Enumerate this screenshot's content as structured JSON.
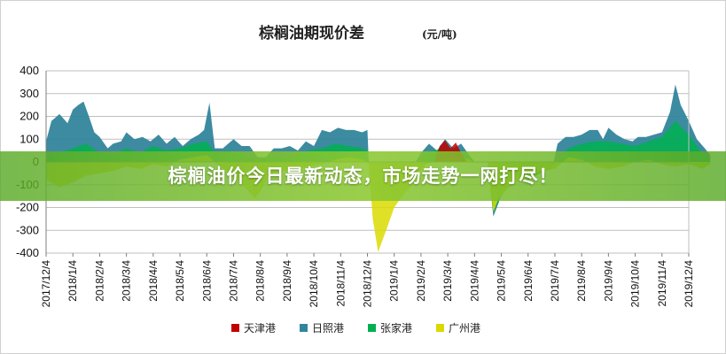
{
  "chart_data": {
    "type": "area",
    "title": "棕榈油期现价差",
    "unit": "(元/吨)",
    "ylim": [
      -400,
      400
    ],
    "yticks": [
      400,
      300,
      200,
      100,
      0,
      -100,
      -200,
      -300,
      -400
    ],
    "grid": true,
    "legend_position": "bottom",
    "x_labels": [
      "2017/12/4",
      "2018/1/4",
      "2018/2/4",
      "2018/3/4",
      "2018/4/4",
      "2018/5/4",
      "2018/6/4",
      "2018/7/4",
      "2018/8/4",
      "2018/9/4",
      "2018/10/4",
      "2018/11/4",
      "2018/12/4",
      "2019/1/4",
      "2019/2/4",
      "2019/3/4",
      "2019/4/4",
      "2019/5/4",
      "2019/6/4",
      "2019/7/4",
      "2019/8/4",
      "2019/9/4",
      "2019/10/4",
      "2019/11/4",
      "2019/12/4"
    ],
    "series": [
      {
        "name": "天津港",
        "color": "#c00000",
        "points": [
          [
            14.5,
            0
          ],
          [
            14.7,
            70
          ],
          [
            14.9,
            95
          ],
          [
            15.1,
            60
          ],
          [
            15.3,
            85
          ],
          [
            15.5,
            40
          ],
          [
            15.7,
            0
          ]
        ]
      },
      {
        "name": "日照港",
        "color": "#31859c",
        "points": [
          [
            0,
            90
          ],
          [
            0.2,
            180
          ],
          [
            0.5,
            210
          ],
          [
            0.8,
            170
          ],
          [
            1.0,
            230
          ],
          [
            1.2,
            250
          ],
          [
            1.4,
            265
          ],
          [
            1.6,
            200
          ],
          [
            1.8,
            130
          ],
          [
            2.0,
            110
          ],
          [
            2.3,
            60
          ],
          [
            2.5,
            80
          ],
          [
            2.8,
            90
          ],
          [
            3.0,
            130
          ],
          [
            3.3,
            100
          ],
          [
            3.6,
            110
          ],
          [
            3.9,
            90
          ],
          [
            4.2,
            120
          ],
          [
            4.5,
            80
          ],
          [
            4.8,
            110
          ],
          [
            5.1,
            70
          ],
          [
            5.4,
            100
          ],
          [
            5.7,
            120
          ],
          [
            5.9,
            140
          ],
          [
            6.1,
            260
          ],
          [
            6.3,
            60
          ],
          [
            6.6,
            60
          ],
          [
            6.8,
            80
          ],
          [
            7.0,
            100
          ],
          [
            7.3,
            70
          ],
          [
            7.6,
            70
          ],
          [
            7.9,
            20
          ],
          [
            8.2,
            20
          ],
          [
            8.5,
            60
          ],
          [
            8.8,
            60
          ],
          [
            9.1,
            70
          ],
          [
            9.4,
            50
          ],
          [
            9.7,
            90
          ],
          [
            10.0,
            70
          ],
          [
            10.3,
            140
          ],
          [
            10.6,
            130
          ],
          [
            10.9,
            150
          ],
          [
            11.2,
            140
          ],
          [
            11.5,
            140
          ],
          [
            11.8,
            130
          ],
          [
            12.0,
            140
          ],
          [
            12.05,
            0
          ],
          [
            13.8,
            0
          ],
          [
            14.0,
            40
          ],
          [
            14.3,
            80
          ],
          [
            14.6,
            50
          ],
          [
            14.9,
            100
          ],
          [
            15.2,
            60
          ],
          [
            15.5,
            80
          ],
          [
            15.8,
            30
          ],
          [
            16.0,
            0
          ],
          [
            16.5,
            0
          ],
          [
            16.7,
            -240
          ],
          [
            16.9,
            -180
          ],
          [
            17.1,
            -100
          ],
          [
            17.3,
            -80
          ],
          [
            17.5,
            -60
          ],
          [
            17.8,
            -70
          ],
          [
            18.0,
            -80
          ],
          [
            18.3,
            -60
          ],
          [
            18.6,
            -40
          ],
          [
            18.9,
            -30
          ],
          [
            19.1,
            80
          ],
          [
            19.4,
            110
          ],
          [
            19.7,
            110
          ],
          [
            20.0,
            120
          ],
          [
            20.3,
            140
          ],
          [
            20.6,
            140
          ],
          [
            20.8,
            100
          ],
          [
            21.0,
            150
          ],
          [
            21.3,
            120
          ],
          [
            21.6,
            100
          ],
          [
            21.9,
            90
          ],
          [
            22.1,
            110
          ],
          [
            22.4,
            110
          ],
          [
            22.7,
            120
          ],
          [
            23.0,
            130
          ],
          [
            23.3,
            220
          ],
          [
            23.5,
            340
          ],
          [
            23.7,
            250
          ],
          [
            24.0,
            180
          ],
          [
            24.3,
            100
          ],
          [
            24.6,
            60
          ],
          [
            24.8,
            30
          ]
        ]
      },
      {
        "name": "张家港",
        "color": "#00b050",
        "points": [
          [
            0,
            20
          ],
          [
            0.5,
            40
          ],
          [
            1.0,
            60
          ],
          [
            1.5,
            80
          ],
          [
            2.0,
            40
          ],
          [
            2.5,
            30
          ],
          [
            3.0,
            60
          ],
          [
            3.5,
            40
          ],
          [
            4.0,
            70
          ],
          [
            4.5,
            50
          ],
          [
            5.0,
            60
          ],
          [
            5.5,
            80
          ],
          [
            6.0,
            90
          ],
          [
            6.3,
            40
          ],
          [
            6.8,
            50
          ],
          [
            7.3,
            30
          ],
          [
            7.8,
            10
          ],
          [
            8.3,
            20
          ],
          [
            8.8,
            20
          ],
          [
            9.3,
            30
          ],
          [
            9.8,
            50
          ],
          [
            10.3,
            60
          ],
          [
            10.8,
            80
          ],
          [
            11.3,
            70
          ],
          [
            11.8,
            60
          ],
          [
            12.0,
            50
          ],
          [
            12.05,
            0
          ],
          [
            13.8,
            0
          ],
          [
            14.2,
            40
          ],
          [
            14.8,
            60
          ],
          [
            15.3,
            50
          ],
          [
            15.8,
            20
          ],
          [
            16.0,
            0
          ],
          [
            16.5,
            0
          ],
          [
            16.7,
            -220
          ],
          [
            17.0,
            -150
          ],
          [
            17.5,
            -60
          ],
          [
            18.0,
            -50
          ],
          [
            18.5,
            -30
          ],
          [
            19.0,
            -10
          ],
          [
            19.5,
            60
          ],
          [
            20.0,
            80
          ],
          [
            20.5,
            90
          ],
          [
            21.0,
            90
          ],
          [
            21.5,
            80
          ],
          [
            22.0,
            70
          ],
          [
            22.5,
            90
          ],
          [
            23.0,
            110
          ],
          [
            23.5,
            180
          ],
          [
            24.0,
            120
          ],
          [
            24.5,
            40
          ],
          [
            24.8,
            10
          ]
        ]
      },
      {
        "name": "广州港",
        "color": "#dada00",
        "points": [
          [
            0,
            -80
          ],
          [
            0.5,
            -110
          ],
          [
            1.0,
            -90
          ],
          [
            1.5,
            -60
          ],
          [
            2.0,
            -50
          ],
          [
            2.5,
            -40
          ],
          [
            3.0,
            -20
          ],
          [
            3.5,
            -30
          ],
          [
            4.0,
            -10
          ],
          [
            4.5,
            -20
          ],
          [
            5.0,
            10
          ],
          [
            5.5,
            20
          ],
          [
            6.0,
            30
          ],
          [
            6.5,
            -20
          ],
          [
            7.0,
            -60
          ],
          [
            7.5,
            -120
          ],
          [
            7.8,
            -160
          ],
          [
            8.0,
            -130
          ],
          [
            8.3,
            -60
          ],
          [
            8.8,
            -40
          ],
          [
            9.3,
            -30
          ],
          [
            9.8,
            -20
          ],
          [
            10.3,
            -10
          ],
          [
            10.8,
            10
          ],
          [
            11.3,
            20
          ],
          [
            11.8,
            10
          ],
          [
            12.0,
            0
          ],
          [
            12.05,
            -10
          ],
          [
            12.2,
            -250
          ],
          [
            12.4,
            -395
          ],
          [
            12.7,
            -300
          ],
          [
            13.0,
            -200
          ],
          [
            13.3,
            -150
          ],
          [
            13.6,
            -110
          ],
          [
            13.8,
            -60
          ],
          [
            14.2,
            -10
          ],
          [
            14.8,
            10
          ],
          [
            15.3,
            20
          ],
          [
            15.8,
            10
          ],
          [
            16.0,
            0
          ],
          [
            16.5,
            0
          ],
          [
            16.7,
            -220
          ],
          [
            16.9,
            -160
          ],
          [
            17.2,
            -120
          ],
          [
            17.5,
            -90
          ],
          [
            18.0,
            -70
          ],
          [
            18.5,
            -40
          ],
          [
            19.0,
            -30
          ],
          [
            19.5,
            20
          ],
          [
            20.0,
            10
          ],
          [
            20.5,
            -20
          ],
          [
            21.0,
            -30
          ],
          [
            21.5,
            -20
          ],
          [
            22.0,
            0
          ],
          [
            22.5,
            10
          ],
          [
            23.0,
            -10
          ],
          [
            23.5,
            -20
          ],
          [
            24.0,
            -10
          ],
          [
            24.5,
            -30
          ],
          [
            24.8,
            -10
          ]
        ]
      }
    ]
  },
  "banner": {
    "text": "棕榈油价今日最新动态，市场走势一网打尽！"
  }
}
